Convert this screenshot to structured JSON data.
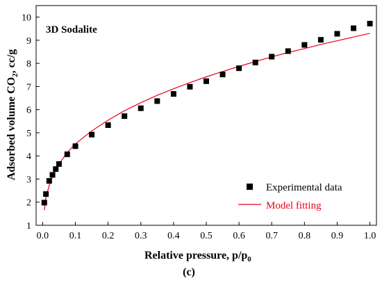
{
  "chart_data": {
    "type": "scatter",
    "annotation": "3D Sodalite",
    "caption": "(c)",
    "xlabel": {
      "main": "Relative pressure, p/p",
      "sub": "0"
    },
    "ylabel": {
      "pre": "Adsorbed volume CO",
      "sub": "2",
      "post": ", cc/g"
    },
    "xlim": [
      -0.02,
      1.02
    ],
    "ylim": [
      1,
      10.5
    ],
    "x_ticks": [
      0.0,
      0.1,
      0.2,
      0.3,
      0.4,
      0.5,
      0.6,
      0.7,
      0.8,
      0.9,
      1.0
    ],
    "x_tick_labels": [
      "0.0",
      "0.1",
      "0.2",
      "0.3",
      "0.4",
      "0.5",
      "0.6",
      "0.7",
      "0.8",
      "0.9",
      "1.0"
    ],
    "y_ticks": [
      1,
      2,
      3,
      4,
      5,
      6,
      7,
      8,
      9,
      10
    ],
    "y_tick_labels": [
      "1",
      "2",
      "3",
      "4",
      "5",
      "6",
      "7",
      "8",
      "9",
      "10"
    ],
    "legend_position": "bottom-right",
    "series": [
      {
        "name": "Experimental data",
        "kind": "markers",
        "color": "#000000",
        "x": [
          0.005,
          0.01,
          0.02,
          0.03,
          0.04,
          0.05,
          0.075,
          0.1,
          0.15,
          0.2,
          0.25,
          0.3,
          0.35,
          0.4,
          0.45,
          0.5,
          0.55,
          0.6,
          0.65,
          0.7,
          0.75,
          0.8,
          0.85,
          0.9,
          0.95,
          1.0
        ],
        "y": [
          1.98,
          2.35,
          2.92,
          3.18,
          3.43,
          3.65,
          4.07,
          4.42,
          4.92,
          5.33,
          5.72,
          6.06,
          6.37,
          6.68,
          6.99,
          7.23,
          7.52,
          7.79,
          8.04,
          8.29,
          8.53,
          8.8,
          9.02,
          9.28,
          9.52,
          9.72
        ]
      },
      {
        "name": "Model fitting",
        "kind": "line",
        "color": "#e8001c",
        "x": [
          0.005,
          0.01,
          0.02,
          0.03,
          0.05,
          0.075,
          0.1,
          0.15,
          0.2,
          0.25,
          0.3,
          0.35,
          0.4,
          0.45,
          0.5,
          0.55,
          0.6,
          0.65,
          0.7,
          0.75,
          0.8,
          0.85,
          0.9,
          0.95,
          1.0
        ],
        "y": [
          1.65,
          2.2,
          2.72,
          3.1,
          3.65,
          4.15,
          4.52,
          5.08,
          5.55,
          5.95,
          6.3,
          6.62,
          6.9,
          7.17,
          7.42,
          7.65,
          7.87,
          8.08,
          8.28,
          8.47,
          8.64,
          8.82,
          8.98,
          9.14,
          9.3
        ]
      }
    ]
  }
}
